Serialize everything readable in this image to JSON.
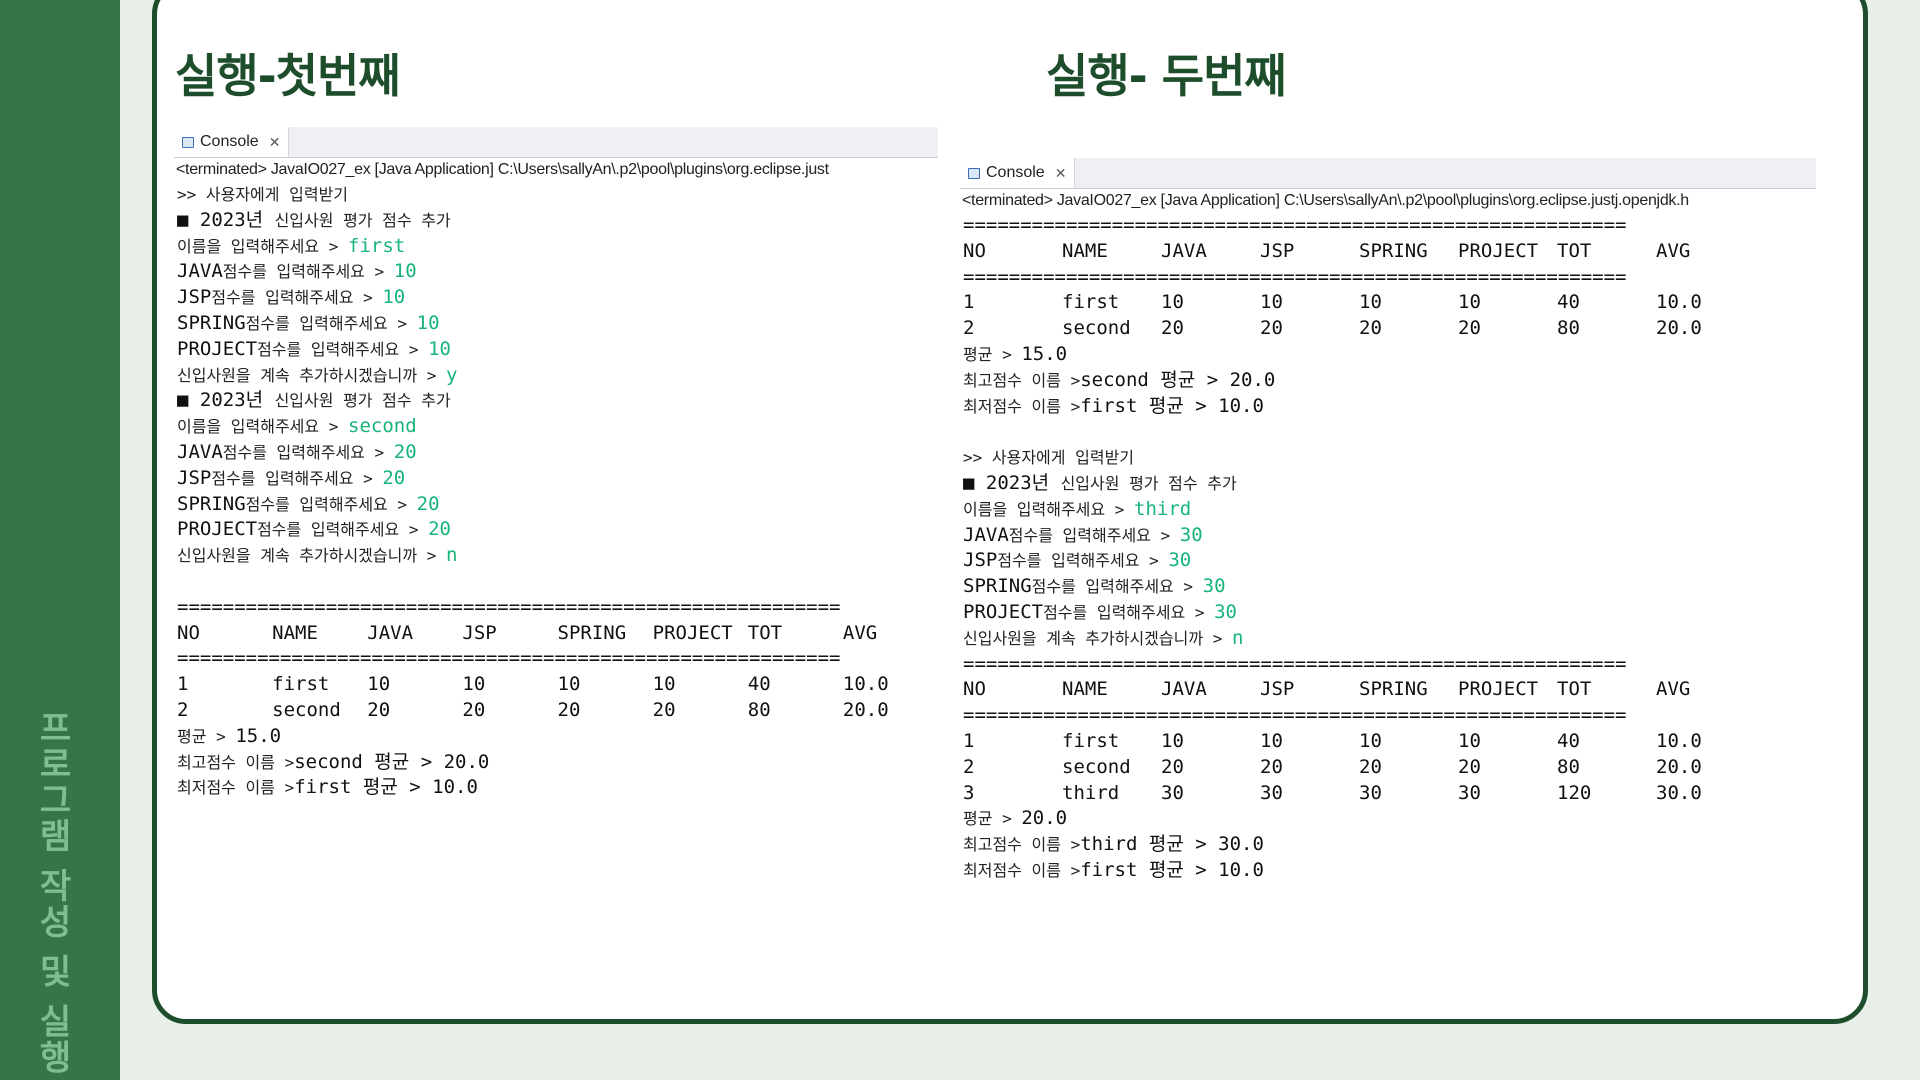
{
  "sidebar": {
    "label": "프로그램 작성 및 실행"
  },
  "sections": [
    {
      "heading": "실행-첫번째",
      "tab_label": "Console",
      "status": "<terminated> JavaIO027_ex [Java Application] C:\\Users\\sallyAn\\.p2\\pool\\plugins\\org.eclipse.just",
      "prompt_header": ">> 사용자에게 입력받기",
      "entries": [
        {
          "section_title": "■ 2023년 신입사원 평가 점수 추가",
          "name_prompt": "이름을 입력해주세요 > ",
          "name": "first",
          "java_prompt": "JAVA점수를 입력해주세요 > ",
          "java": "10",
          "jsp_prompt": "JSP점수를 입력해주세요 > ",
          "jsp": "10",
          "spring_prompt": "SPRING점수를 입력해주세요 > ",
          "spring": "10",
          "project_prompt": "PROJECT점수를 입력해주세요 > ",
          "project": "10",
          "continue_prompt": "신입사원을 계속 추가하시겠습니까 > ",
          "continue": "y"
        },
        {
          "section_title": "■ 2023년 신입사원 평가 점수 추가",
          "name_prompt": "이름을 입력해주세요 > ",
          "name": "second",
          "java_prompt": "JAVA점수를 입력해주세요 > ",
          "java": "20",
          "jsp_prompt": "JSP점수를 입력해주세요 > ",
          "jsp": "20",
          "spring_prompt": "SPRING점수를 입력해주세요 > ",
          "spring": "20",
          "project_prompt": "PROJECT점수를 입력해주세요 > ",
          "project": "20",
          "continue_prompt": "신입사원을 계속 추가하시겠습니까 > ",
          "continue": "n"
        }
      ],
      "separator": "==========================================================",
      "headers": [
        "NO",
        "NAME",
        "JAVA",
        "JSP",
        "SPRING",
        "PROJECT",
        "TOT",
        "AVG"
      ],
      "rows": [
        [
          "1",
          "first",
          "10",
          "10",
          "10",
          "10",
          "40",
          "10.0"
        ],
        [
          "2",
          "second",
          "20",
          "20",
          "20",
          "20",
          "80",
          "20.0"
        ]
      ],
      "summary": [
        {
          "label": "평균 > ",
          "value": "15.0"
        },
        {
          "label": "최고점수 이름 >",
          "value": "second 평균 > 20.0"
        },
        {
          "label": "최저점수 이름 >",
          "value": "first 평균 > 10.0"
        }
      ]
    },
    {
      "heading": "실행- 두번째",
      "tab_label": "Console",
      "status": "<terminated> JavaIO027_ex [Java Application] C:\\Users\\sallyAn\\.p2\\pool\\plugins\\org.eclipse.justj.openjdk.h",
      "separator": "==========================================================",
      "headers": [
        "NO",
        "NAME",
        "JAVA",
        "JSP",
        "SPRING",
        "PROJECT",
        "TOT",
        "AVG"
      ],
      "rows_before": [
        [
          "1",
          "first",
          "10",
          "10",
          "10",
          "10",
          "40",
          "10.0"
        ],
        [
          "2",
          "second",
          "20",
          "20",
          "20",
          "20",
          "80",
          "20.0"
        ]
      ],
      "summary_before": [
        {
          "label": "평균 > ",
          "value": "15.0"
        },
        {
          "label": "최고점수 이름 >",
          "value": "second 평균 > 20.0"
        },
        {
          "label": "최저점수 이름 >",
          "value": "first 평균 > 10.0"
        }
      ],
      "prompt_header": ">> 사용자에게 입력받기",
      "entry": {
        "section_title": "■ 2023년 신입사원 평가 점수 추가",
        "name_prompt": "이름을 입력해주세요 > ",
        "name": "third",
        "java_prompt": "JAVA점수를 입력해주세요 > ",
        "java": "30",
        "jsp_prompt": "JSP점수를 입력해주세요 > ",
        "jsp": "30",
        "spring_prompt": "SPRING점수를 입력해주세요 > ",
        "spring": "30",
        "project_prompt": "PROJECT점수를 입력해주세요 > ",
        "project": "30",
        "continue_prompt": "신입사원을 계속 추가하시겠습니까 > ",
        "continue": "n"
      },
      "rows_after": [
        [
          "1",
          "first",
          "10",
          "10",
          "10",
          "10",
          "40",
          "10.0"
        ],
        [
          "2",
          "second",
          "20",
          "20",
          "20",
          "20",
          "80",
          "20.0"
        ],
        [
          "3",
          "third",
          "30",
          "30",
          "30",
          "30",
          "120",
          "30.0"
        ]
      ],
      "summary_after": [
        {
          "label": "평균 > ",
          "value": "20.0"
        },
        {
          "label": "최고점수 이름 >",
          "value": "third 평균 > 30.0"
        },
        {
          "label": "최저점수 이름 >",
          "value": "first 평균 > 10.0"
        }
      ]
    }
  ],
  "colors": {
    "sidebar": "#36744a",
    "border": "#1d4d2b",
    "input": "#18b57a"
  }
}
